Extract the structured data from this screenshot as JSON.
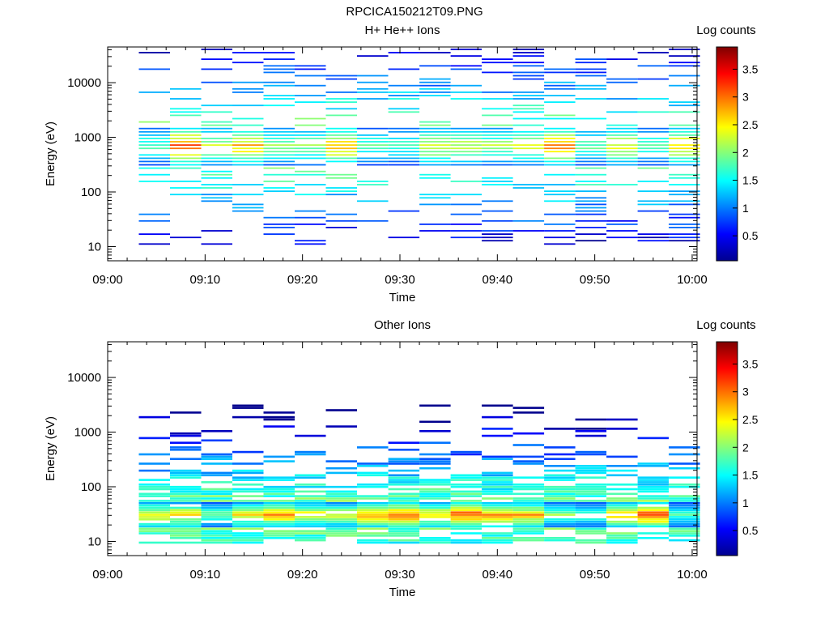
{
  "figure": {
    "title": "RPCICA150212T09.PNG"
  },
  "colorbar": {
    "label": "Log counts",
    "ticks": [
      "0.5",
      "1",
      "1.5",
      "2",
      "2.5",
      "3",
      "3.5"
    ],
    "tick_values": [
      0.5,
      1,
      1.5,
      2,
      2.5,
      3,
      3.5
    ],
    "range": [
      0.05,
      3.9
    ],
    "colormap": "jet"
  },
  "chart_data": [
    {
      "type": "heatmap",
      "title": "H+ He++ Ions",
      "xlabel": "Time",
      "ylabel": "Energy (eV)",
      "x_ticks": [
        "09:00",
        "09:10",
        "09:20",
        "09:30",
        "09:40",
        "09:50",
        "10:00"
      ],
      "x_range_minutes": [
        0,
        60.5
      ],
      "y_ticks": [
        "10",
        "100",
        "1000",
        "10000"
      ],
      "y_scale": "log",
      "y_range": [
        5.5,
        45000
      ],
      "time_bins_start_minutes": [
        3.2,
        6.4,
        9.6,
        12.8,
        16.0,
        19.2,
        22.4,
        25.6,
        28.8,
        32.0,
        35.2,
        38.4,
        41.6,
        44.8,
        48.0,
        51.2,
        54.4,
        57.6
      ],
      "colorbar_label": "Log counts",
      "peak_energy_band_eV": [
        300,
        1500
      ],
      "peak_value_log_counts": 3.6
    },
    {
      "type": "heatmap",
      "title": "Other Ions",
      "xlabel": "Time",
      "ylabel": "Energy (eV)",
      "x_ticks": [
        "09:00",
        "09:10",
        "09:20",
        "09:30",
        "09:40",
        "09:50",
        "10:00"
      ],
      "x_range_minutes": [
        0,
        60.5
      ],
      "y_ticks": [
        "10",
        "100",
        "1000",
        "10000"
      ],
      "y_scale": "log",
      "y_range": [
        5.5,
        45000
      ],
      "time_bins_start_minutes": [
        3.2,
        6.4,
        9.6,
        12.8,
        16.0,
        19.2,
        22.4,
        25.6,
        28.8,
        32.0,
        35.2,
        38.4,
        41.6,
        44.8,
        48.0,
        51.2,
        54.4,
        57.6
      ],
      "colorbar_label": "Log counts",
      "peak_energy_band_eV": [
        18,
        50
      ],
      "peak_value_log_counts": 3.6
    }
  ]
}
